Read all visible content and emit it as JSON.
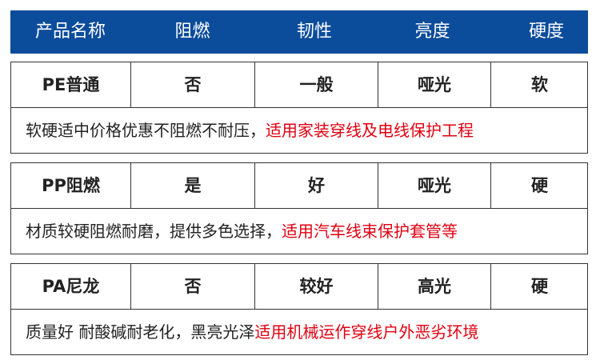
{
  "header": [
    "产品名称",
    "阻燃",
    "韧性",
    "亮度",
    "硬度"
  ],
  "products": [
    {
      "name": "PE普通",
      "flame": "否",
      "toughness": "一般",
      "gloss": "哑光",
      "hardness": "软",
      "desc": "软硬适中价格优惠不阻燃不耐压，",
      "use": "适用家装穿线及电线保护工程"
    },
    {
      "name": "PP阻燃",
      "flame": "是",
      "toughness": "好",
      "gloss": "哑光",
      "hardness": "硬",
      "desc": "材质较硬阻燃耐磨，提供多色选择，",
      "use": "适用汽车线束保护套管等"
    },
    {
      "name": "PA尼龙",
      "flame": "否",
      "toughness": "较好",
      "gloss": "高光",
      "hardness": "硬",
      "desc": "质量好 耐酸碱耐老化，黑亮光泽",
      "use": "适用机械运作穿线户外恶劣环境"
    }
  ],
  "colors": {
    "header_bg": "#0b4c9b",
    "highlight": "#e00010"
  }
}
